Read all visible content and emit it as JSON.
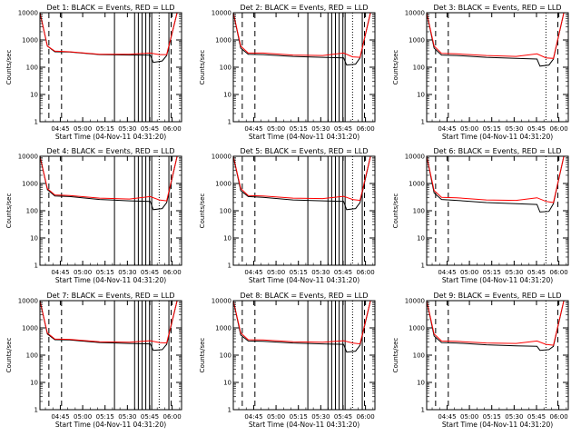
{
  "chart_data": [
    {
      "type": "line",
      "title": "Det 1: BLACK = Events, RED = LLD",
      "xlabel": "Start Time (04-Nov-11 04:31:20)",
      "ylabel": "Counts/sec",
      "ylog": true,
      "ylim": [
        1,
        10000
      ],
      "xticks": [
        "04:45",
        "05:00",
        "05:15",
        "05:30",
        "05:45",
        "06:00"
      ],
      "yticks": [
        "1",
        "10",
        "100",
        "1000",
        "10000"
      ],
      "series": [
        {
          "label": "Events",
          "color": "#000000",
          "t": [
            0,
            5,
            10,
            20,
            40,
            60,
            74,
            76,
            82,
            85,
            92
          ],
          "y": [
            10000,
            600,
            370,
            360,
            290,
            280,
            280,
            150,
            170,
            270,
            10000
          ]
        },
        {
          "label": "LLD",
          "color": "#ff0000",
          "t": [
            0,
            5,
            10,
            20,
            40,
            60,
            74,
            80,
            85,
            92
          ],
          "y": [
            10000,
            600,
            390,
            370,
            300,
            300,
            330,
            290,
            290,
            10000
          ]
        }
      ],
      "solid_markers": [
        50,
        63.5,
        66,
        68.5,
        71,
        73.5,
        75,
        86.5
      ],
      "dashed_markers": [
        6,
        14.5,
        88
      ],
      "dotted_markers": [
        80
      ]
    },
    {
      "type": "line",
      "title": "Det 2: BLACK = Events, RED = LLD",
      "xlabel": "Start Time (04-Nov-11 04:31:20)",
      "ylabel": "Counts/sec",
      "ylog": true,
      "ylim": [
        1,
        10000
      ],
      "xticks": [
        "04:45",
        "05:00",
        "05:15",
        "05:30",
        "05:45",
        "06:00"
      ],
      "yticks": [
        "1",
        "10",
        "100",
        "1000",
        "10000"
      ],
      "series": [
        {
          "label": "Events",
          "color": "#000000",
          "t": [
            0,
            5,
            10,
            20,
            40,
            60,
            74,
            76,
            82,
            85,
            92
          ],
          "y": [
            10000,
            500,
            300,
            290,
            250,
            230,
            220,
            120,
            130,
            220,
            10000
          ]
        },
        {
          "label": "LLD",
          "color": "#ff0000",
          "t": [
            0,
            5,
            10,
            20,
            40,
            60,
            74,
            80,
            85,
            92
          ],
          "y": [
            10000,
            600,
            330,
            330,
            280,
            270,
            330,
            240,
            230,
            10000
          ]
        }
      ],
      "solid_markers": [
        50,
        63.5,
        66,
        68.5,
        71,
        73.5,
        75,
        86.5
      ],
      "dashed_markers": [
        6,
        14.5,
        88
      ],
      "dotted_markers": [
        80
      ]
    },
    {
      "type": "line",
      "title": "Det 3: BLACK = Events, RED = LLD",
      "xlabel": "Start Time (04-Nov-11 04:31:20)",
      "ylabel": "Counts/sec",
      "ylog": true,
      "ylim": [
        1,
        10000
      ],
      "xticks": [
        "04:45",
        "05:00",
        "05:15",
        "05:30",
        "05:45",
        "06:00"
      ],
      "yticks": [
        "1",
        "10",
        "100",
        "1000",
        "10000"
      ],
      "series": [
        {
          "label": "Events",
          "color": "#000000",
          "t": [
            0,
            5,
            10,
            20,
            40,
            60,
            74,
            76,
            82,
            85,
            92
          ],
          "y": [
            10000,
            500,
            280,
            270,
            230,
            210,
            200,
            110,
            120,
            200,
            10000
          ]
        },
        {
          "label": "LLD",
          "color": "#ff0000",
          "t": [
            0,
            5,
            10,
            20,
            40,
            60,
            74,
            80,
            85,
            92
          ],
          "y": [
            10000,
            600,
            320,
            310,
            270,
            250,
            310,
            220,
            210,
            10000
          ]
        }
      ],
      "solid_markers": [],
      "dashed_markers": [
        6,
        14.5,
        88
      ],
      "dotted_markers": [
        80
      ]
    },
    {
      "type": "line",
      "title": "Det 4: BLACK = Events, RED = LLD",
      "xlabel": "Start Time (04-Nov-11 04:31:20)",
      "ylabel": "Counts/sec",
      "ylog": true,
      "ylim": [
        1,
        10000
      ],
      "xticks": [
        "04:45",
        "05:00",
        "05:15",
        "05:30",
        "05:45",
        "06:00"
      ],
      "yticks": [
        "1",
        "10",
        "100",
        "1000",
        "10000"
      ],
      "series": [
        {
          "label": "Events",
          "color": "#000000",
          "t": [
            0,
            5,
            10,
            20,
            40,
            60,
            74,
            76,
            82,
            85,
            92
          ],
          "y": [
            10000,
            600,
            350,
            330,
            260,
            230,
            220,
            110,
            120,
            200,
            10000
          ]
        },
        {
          "label": "LLD",
          "color": "#ff0000",
          "t": [
            0,
            5,
            10,
            20,
            40,
            60,
            74,
            80,
            85,
            92
          ],
          "y": [
            10000,
            650,
            380,
            360,
            290,
            270,
            330,
            250,
            230,
            10000
          ]
        }
      ],
      "solid_markers": [
        50,
        63.5,
        66,
        68.5,
        71,
        73.5,
        75,
        86.5
      ],
      "dashed_markers": [
        6,
        14.5,
        88
      ],
      "dotted_markers": [
        80
      ]
    },
    {
      "type": "line",
      "title": "Det 5: BLACK = Events, RED = LLD",
      "xlabel": "Start Time (04-Nov-11 04:31:20)",
      "ylabel": "Counts/sec",
      "ylog": true,
      "ylim": [
        1,
        10000
      ],
      "xticks": [
        "04:45",
        "05:00",
        "05:15",
        "05:30",
        "05:45",
        "06:00"
      ],
      "yticks": [
        "1",
        "10",
        "100",
        "1000",
        "10000"
      ],
      "series": [
        {
          "label": "Events",
          "color": "#000000",
          "t": [
            0,
            5,
            10,
            20,
            40,
            60,
            74,
            76,
            82,
            85,
            92
          ],
          "y": [
            10000,
            550,
            330,
            310,
            250,
            230,
            220,
            110,
            120,
            200,
            10000
          ]
        },
        {
          "label": "LLD",
          "color": "#ff0000",
          "t": [
            0,
            5,
            10,
            20,
            40,
            60,
            74,
            80,
            85,
            92
          ],
          "y": [
            10000,
            650,
            360,
            350,
            290,
            280,
            340,
            260,
            240,
            10000
          ]
        }
      ],
      "solid_markers": [
        50,
        63.5,
        66,
        68.5,
        71,
        73.5,
        75,
        86.5
      ],
      "dashed_markers": [
        6,
        14.5,
        88
      ],
      "dotted_markers": [
        80
      ]
    },
    {
      "type": "line",
      "title": "Det 6: BLACK = Events, RED = LLD",
      "xlabel": "Start Time (04-Nov-11 04:31:20)",
      "ylabel": "Counts/sec",
      "ylog": true,
      "ylim": [
        1,
        10000
      ],
      "xticks": [
        "04:45",
        "05:00",
        "05:15",
        "05:30",
        "05:45",
        "06:00"
      ],
      "yticks": [
        "1",
        "10",
        "100",
        "1000",
        "10000"
      ],
      "series": [
        {
          "label": "Events",
          "color": "#000000",
          "t": [
            0,
            5,
            10,
            20,
            40,
            60,
            74,
            76,
            82,
            85,
            92
          ],
          "y": [
            10000,
            450,
            260,
            240,
            200,
            180,
            170,
            90,
            95,
            180,
            10000
          ]
        },
        {
          "label": "LLD",
          "color": "#ff0000",
          "t": [
            0,
            5,
            10,
            20,
            40,
            60,
            74,
            80,
            85,
            92
          ],
          "y": [
            10000,
            550,
            310,
            300,
            250,
            240,
            300,
            220,
            200,
            10000
          ]
        }
      ],
      "solid_markers": [],
      "dashed_markers": [
        6,
        14.5,
        88
      ],
      "dotted_markers": [
        80
      ]
    },
    {
      "type": "line",
      "title": "Det 7: BLACK = Events, RED = LLD",
      "xlabel": "Start Time (04-Nov-11 04:31:20)",
      "ylabel": "Counts/sec",
      "ylog": true,
      "ylim": [
        1,
        10000
      ],
      "xticks": [
        "04:45",
        "05:00",
        "05:15",
        "05:30",
        "05:45",
        "06:00"
      ],
      "yticks": [
        "1",
        "10",
        "100",
        "1000",
        "10000"
      ],
      "series": [
        {
          "label": "Events",
          "color": "#000000",
          "t": [
            0,
            5,
            10,
            20,
            40,
            60,
            74,
            76,
            82,
            85,
            92
          ],
          "y": [
            10000,
            600,
            370,
            360,
            290,
            270,
            260,
            150,
            160,
            250,
            10000
          ]
        },
        {
          "label": "LLD",
          "color": "#ff0000",
          "t": [
            0,
            5,
            10,
            20,
            40,
            60,
            74,
            80,
            85,
            92
          ],
          "y": [
            10000,
            650,
            390,
            380,
            310,
            300,
            340,
            290,
            280,
            10000
          ]
        }
      ],
      "solid_markers": [
        50,
        63.5,
        66,
        68.5,
        71,
        73.5,
        75,
        86.5
      ],
      "dashed_markers": [
        6,
        14.5,
        88
      ],
      "dotted_markers": [
        80
      ]
    },
    {
      "type": "line",
      "title": "Det 8: BLACK = Events, RED = LLD",
      "xlabel": "Start Time (04-Nov-11 04:31:20)",
      "ylabel": "Counts/sec",
      "ylog": true,
      "ylim": [
        1,
        10000
      ],
      "xticks": [
        "04:45",
        "05:00",
        "05:15",
        "05:30",
        "05:45",
        "06:00"
      ],
      "yticks": [
        "1",
        "10",
        "100",
        "1000",
        "10000"
      ],
      "series": [
        {
          "label": "Events",
          "color": "#000000",
          "t": [
            0,
            5,
            10,
            20,
            40,
            60,
            74,
            76,
            82,
            85,
            92
          ],
          "y": [
            10000,
            550,
            330,
            320,
            280,
            260,
            250,
            130,
            140,
            230,
            10000
          ]
        },
        {
          "label": "LLD",
          "color": "#ff0000",
          "t": [
            0,
            5,
            10,
            20,
            40,
            60,
            74,
            80,
            85,
            92
          ],
          "y": [
            10000,
            650,
            370,
            360,
            310,
            300,
            340,
            280,
            260,
            10000
          ]
        }
      ],
      "solid_markers": [
        50,
        63.5,
        66,
        68.5,
        71,
        73.5,
        75,
        86.5
      ],
      "dashed_markers": [
        6,
        14.5,
        88
      ],
      "dotted_markers": [
        80
      ]
    },
    {
      "type": "line",
      "title": "Det 9: BLACK = Events, RED = LLD",
      "xlabel": "Start Time (04-Nov-11 04:31:20)",
      "ylabel": "Counts/sec",
      "ylog": true,
      "ylim": [
        1,
        10000
      ],
      "xticks": [
        "04:45",
        "05:00",
        "05:15",
        "05:30",
        "05:45",
        "06:00"
      ],
      "yticks": [
        "1",
        "10",
        "100",
        "1000",
        "10000"
      ],
      "series": [
        {
          "label": "Events",
          "color": "#000000",
          "t": [
            0,
            5,
            10,
            20,
            40,
            60,
            74,
            76,
            82,
            85,
            92
          ],
          "y": [
            10000,
            500,
            290,
            280,
            240,
            220,
            210,
            150,
            160,
            210,
            10000
          ]
        },
        {
          "label": "LLD",
          "color": "#ff0000",
          "t": [
            0,
            5,
            10,
            20,
            40,
            60,
            74,
            80,
            85,
            92
          ],
          "y": [
            10000,
            600,
            330,
            320,
            280,
            270,
            330,
            250,
            230,
            10000
          ]
        }
      ],
      "solid_markers": [],
      "dashed_markers": [
        6,
        14.5,
        88
      ],
      "dotted_markers": [
        80
      ]
    }
  ]
}
